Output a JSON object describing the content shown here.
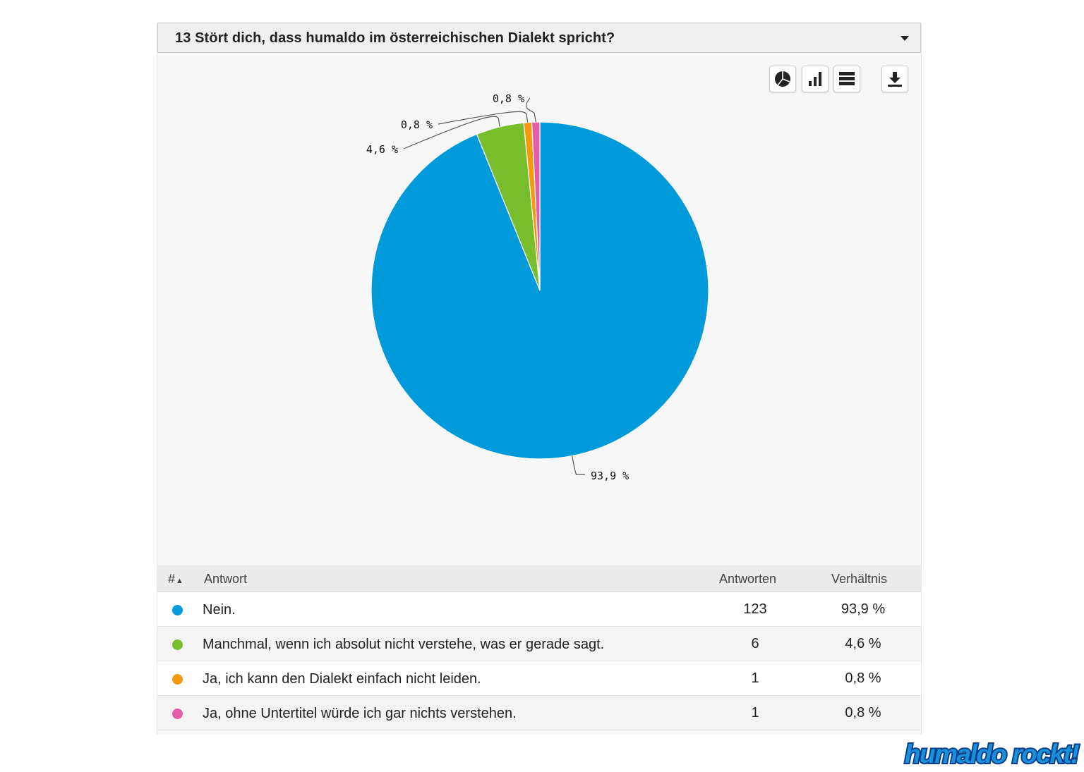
{
  "question": {
    "title": "13 Stört dich, dass humaldo im österreichischen Dialekt spricht?"
  },
  "toolbar": {
    "buttons": [
      {
        "name": "pie-chart-button",
        "icon": "pie-chart-icon"
      },
      {
        "name": "bar-chart-button",
        "icon": "bar-chart-icon"
      },
      {
        "name": "table-view-button",
        "icon": "table-icon"
      },
      {
        "name": "download-button",
        "icon": "download-icon"
      }
    ]
  },
  "table": {
    "headers": {
      "num": "#",
      "answer": "Antwort",
      "count": "Antworten",
      "ratio": "Verhältnis"
    },
    "rows": [
      {
        "label": "Nein.",
        "count": "123",
        "pct": "93,9 %",
        "color": "#0099d9"
      },
      {
        "label": "Manchmal, wenn ich absolut nicht verstehe, was er gerade sagt.",
        "count": "6",
        "pct": "4,6 %",
        "color": "#78bd2c"
      },
      {
        "label": "Ja, ich kann den Dialekt einfach nicht leiden.",
        "count": "1",
        "pct": "0,8 %",
        "color": "#f39a0f"
      },
      {
        "label": "Ja, ohne Untertitel würde ich gar nichts verstehen.",
        "count": "1",
        "pct": "0,8 %",
        "color": "#e35da8"
      }
    ]
  },
  "chart_data": {
    "type": "pie",
    "categories": [
      "Nein.",
      "Manchmal, wenn ich absolut nicht verstehe, was er gerade sagt.",
      "Ja, ich kann den Dialekt einfach nicht leiden.",
      "Ja, ohne Untertitel würde ich gar nichts verstehen."
    ],
    "values": [
      123,
      6,
      1,
      1
    ],
    "labels": [
      "93,9 %",
      "4,6 %",
      "0,8 %",
      "0,8 %"
    ],
    "colors": [
      "#0099d9",
      "#78bd2c",
      "#f39a0f",
      "#e35da8"
    ]
  },
  "watermark": {
    "text": "humaldo rockt!"
  }
}
